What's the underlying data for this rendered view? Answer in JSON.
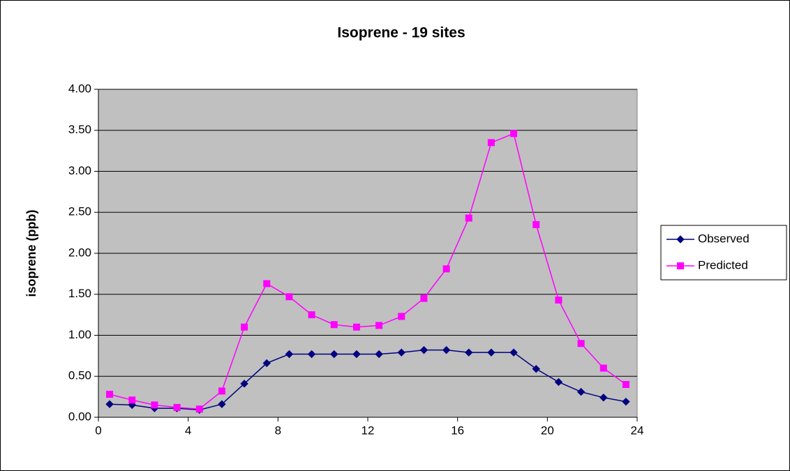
{
  "chart_data": {
    "type": "line",
    "title": "Isoprene - 19 sites",
    "y_label": "isoprene (ppb)",
    "x": [
      0.5,
      1.5,
      2.5,
      3.5,
      4.5,
      5.5,
      6.5,
      7.5,
      8.5,
      9.5,
      10.5,
      11.5,
      12.5,
      13.5,
      14.5,
      15.5,
      16.5,
      17.5,
      18.5,
      19.5,
      20.5,
      21.5,
      22.5,
      23.5
    ],
    "series": [
      {
        "name": "Observed",
        "color": "#000080",
        "marker": "diamond",
        "values": [
          0.16,
          0.15,
          0.11,
          0.11,
          0.09,
          0.16,
          0.41,
          0.66,
          0.77,
          0.77,
          0.77,
          0.77,
          0.77,
          0.79,
          0.82,
          0.82,
          0.79,
          0.79,
          0.79,
          0.59,
          0.43,
          0.31,
          0.24,
          0.19
        ]
      },
      {
        "name": "Predicted",
        "color": "#ff00ff",
        "marker": "square",
        "values": [
          0.28,
          0.21,
          0.15,
          0.12,
          0.1,
          0.32,
          1.1,
          1.63,
          1.47,
          1.25,
          1.13,
          1.1,
          1.12,
          1.23,
          1.45,
          1.81,
          2.43,
          3.35,
          3.46,
          2.35,
          1.43,
          0.9,
          0.6,
          0.4
        ]
      }
    ],
    "xlim": [
      0,
      24
    ],
    "xticks": [
      0,
      4,
      8,
      12,
      16,
      20,
      24
    ],
    "ylim": [
      0,
      4
    ],
    "yticks": [
      {
        "value": 0,
        "label": "0.00"
      },
      {
        "value": 0.5,
        "label": "0.50"
      },
      {
        "value": 1,
        "label": "1.00"
      },
      {
        "value": 1.5,
        "label": "1.50"
      },
      {
        "value": 2,
        "label": "2.00"
      },
      {
        "value": 2.5,
        "label": "2.50"
      },
      {
        "value": 3,
        "label": "3.00"
      },
      {
        "value": 3.5,
        "label": "3.50"
      },
      {
        "value": 4,
        "label": "4.00"
      }
    ],
    "grid": true,
    "plot_background": "#c0c0c0",
    "legend": "right"
  }
}
